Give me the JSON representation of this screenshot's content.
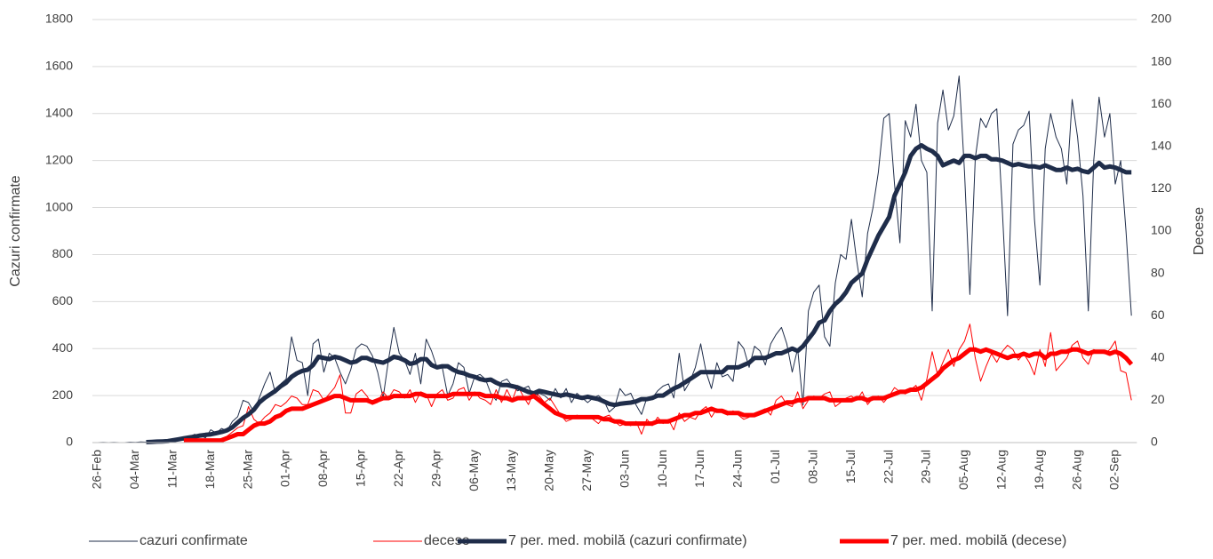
{
  "chart_data": {
    "type": "line",
    "y_label": "Cazuri confirmate",
    "y2_label": "Decese",
    "categories": [
      "26-Feb",
      null,
      null,
      null,
      null,
      null,
      null,
      "04-Mar",
      null,
      null,
      null,
      null,
      null,
      null,
      "11-Mar",
      null,
      null,
      null,
      null,
      null,
      null,
      "18-Mar",
      null,
      null,
      null,
      null,
      null,
      null,
      "25-Mar",
      null,
      null,
      null,
      null,
      null,
      null,
      "01-Apr",
      null,
      null,
      null,
      null,
      null,
      null,
      "08-Apr",
      null,
      null,
      null,
      null,
      null,
      null,
      "15-Apr",
      null,
      null,
      null,
      null,
      null,
      null,
      "22-Apr",
      null,
      null,
      null,
      null,
      null,
      null,
      "29-Apr",
      null,
      null,
      null,
      null,
      null,
      null,
      "06-May",
      null,
      null,
      null,
      null,
      null,
      null,
      "13-May",
      null,
      null,
      null,
      null,
      null,
      null,
      "20-May",
      null,
      null,
      null,
      null,
      null,
      null,
      "27-May",
      null,
      null,
      null,
      null,
      null,
      null,
      "03-Jun",
      null,
      null,
      null,
      null,
      null,
      null,
      "10-Jun",
      null,
      null,
      null,
      null,
      null,
      null,
      "17-Jun",
      null,
      null,
      null,
      null,
      null,
      null,
      "24-Jun",
      null,
      null,
      null,
      null,
      null,
      null,
      "01-Jul",
      null,
      null,
      null,
      null,
      null,
      null,
      "08-Jul",
      null,
      null,
      null,
      null,
      null,
      null,
      "15-Jul",
      null,
      null,
      null,
      null,
      null,
      null,
      "22-Jul",
      null,
      null,
      null,
      null,
      null,
      null,
      "29-Jul",
      null,
      null,
      null,
      null,
      null,
      null,
      "05-Aug",
      null,
      null,
      null,
      null,
      null,
      null,
      "12-Aug",
      null,
      null,
      null,
      null,
      null,
      null,
      "19-Aug",
      null,
      null,
      null,
      null,
      null,
      null,
      "26-Aug",
      null,
      null,
      null,
      null,
      null,
      null,
      "02-Sep",
      null,
      null,
      null
    ],
    "series": [
      {
        "name": "cazuri confirmate",
        "color": "#1f2d4a",
        "values": [
          0,
          1,
          0,
          1,
          0,
          0,
          2,
          1,
          3,
          2,
          3,
          5,
          6,
          8,
          15,
          20,
          10,
          25,
          35,
          30,
          20,
          55,
          40,
          60,
          50,
          90,
          110,
          180,
          170,
          130,
          190,
          250,
          300,
          210,
          250,
          270,
          450,
          350,
          340,
          200,
          420,
          440,
          300,
          380,
          360,
          300,
          250,
          310,
          400,
          420,
          410,
          370,
          300,
          190,
          350,
          490,
          380,
          350,
          290,
          380,
          250,
          440,
          390,
          320,
          320,
          200,
          250,
          340,
          320,
          210,
          280,
          290,
          270,
          210,
          180,
          260,
          270,
          240,
          220,
          230,
          240,
          190,
          210,
          200,
          180,
          230,
          190,
          230,
          170,
          210,
          190,
          170,
          190,
          200,
          180,
          130,
          150,
          230,
          200,
          210,
          160,
          120,
          190,
          190,
          220,
          240,
          250,
          190,
          380,
          220,
          260,
          320,
          420,
          300,
          230,
          340,
          280,
          290,
          260,
          430,
          400,
          320,
          410,
          390,
          330,
          420,
          460,
          490,
          420,
          300,
          400,
          160,
          560,
          640,
          670,
          450,
          410,
          680,
          800,
          780,
          950,
          770,
          620,
          890,
          1000,
          1150,
          1380,
          1400,
          1100,
          850,
          1370,
          1300,
          1440,
          1200,
          1150,
          560,
          1360,
          1500,
          1330,
          1390,
          1560,
          1150,
          630,
          1210,
          1380,
          1340,
          1400,
          1420,
          1000,
          540,
          1270,
          1330,
          1350,
          1410,
          950,
          670,
          1250,
          1400,
          1300,
          1250,
          1100,
          1460,
          1300,
          1050,
          560,
          1200,
          1470,
          1300,
          1400,
          1100,
          1200,
          900,
          540
        ]
      },
      {
        "name": "decese",
        "color": "#ff0000",
        "axis": "y2",
        "values": [
          null,
          null,
          null,
          null,
          null,
          null,
          null,
          null,
          null,
          null,
          null,
          null,
          null,
          null,
          null,
          null,
          0,
          1,
          1,
          0,
          1,
          0,
          1,
          2,
          3,
          5,
          7,
          8,
          17,
          11,
          9,
          12,
          14,
          18,
          17,
          19,
          22,
          21,
          18,
          18,
          25,
          24,
          20,
          23,
          26,
          32,
          14,
          14,
          23,
          25,
          22,
          18,
          19,
          24,
          21,
          25,
          24,
          21,
          25,
          19,
          24,
          23,
          17,
          23,
          25,
          20,
          21,
          25,
          26,
          20,
          24,
          21,
          20,
          18,
          25,
          19,
          25,
          20,
          27,
          22,
          18,
          24,
          22,
          19,
          21,
          17,
          13,
          10,
          11,
          13,
          12,
          12,
          11,
          9,
          12,
          13,
          10,
          8,
          9,
          8,
          10,
          4,
          11,
          8,
          12,
          9,
          11,
          6,
          14,
          10,
          12,
          11,
          15,
          17,
          12,
          16,
          14,
          13,
          15,
          13,
          11,
          12,
          14,
          15,
          16,
          13,
          20,
          22,
          18,
          17,
          24,
          16,
          20,
          22,
          21,
          23,
          24,
          17,
          19,
          21,
          22,
          20,
          24,
          18,
          21,
          22,
          19,
          22,
          26,
          24,
          23,
          25,
          27,
          20,
          30,
          43,
          32,
          38,
          44,
          36,
          44,
          48,
          56,
          40,
          29,
          36,
          42,
          38,
          43,
          46,
          44,
          39,
          42,
          38,
          32,
          44,
          36,
          52,
          34,
          37,
          40,
          46,
          48,
          40,
          37,
          44,
          43,
          42,
          44,
          48,
          34,
          33,
          20
        ]
      },
      {
        "name": "7 per. med. mobilă (cazuri confirmate)",
        "color": "#1f2d4a",
        "values": [
          null,
          null,
          null,
          null,
          null,
          null,
          null,
          null,
          null,
          2,
          3,
          4,
          5,
          6,
          10,
          14,
          18,
          22,
          25,
          30,
          33,
          35,
          40,
          45,
          52,
          65,
          85,
          105,
          120,
          140,
          170,
          190,
          205,
          220,
          240,
          255,
          280,
          295,
          305,
          310,
          330,
          365,
          360,
          355,
          365,
          360,
          350,
          340,
          345,
          360,
          360,
          350,
          345,
          340,
          350,
          365,
          360,
          350,
          335,
          340,
          355,
          355,
          330,
          320,
          325,
          325,
          310,
          300,
          295,
          285,
          280,
          270,
          265,
          268,
          255,
          245,
          245,
          240,
          235,
          225,
          215,
          210,
          220,
          215,
          210,
          205,
          200,
          205,
          200,
          195,
          190,
          195,
          190,
          185,
          175,
          165,
          160,
          165,
          168,
          170,
          175,
          185,
          185,
          190,
          200,
          200,
          215,
          230,
          240,
          255,
          270,
          285,
          300,
          300,
          300,
          300,
          300,
          320,
          320,
          320,
          330,
          340,
          360,
          360,
          360,
          370,
          380,
          380,
          390,
          400,
          390,
          410,
          440,
          470,
          510,
          520,
          560,
          590,
          610,
          640,
          680,
          700,
          720,
          780,
          830,
          880,
          920,
          960,
          1050,
          1100,
          1150,
          1220,
          1250,
          1265,
          1250,
          1240,
          1220,
          1180,
          1190,
          1200,
          1190,
          1220,
          1220,
          1210,
          1220,
          1220,
          1205,
          1205,
          1200,
          1190,
          1180,
          1185,
          1180,
          1175,
          1175,
          1170,
          1180,
          1170,
          1160,
          1160,
          1170,
          1160,
          1165,
          1155,
          1150,
          1170,
          1190,
          1170,
          1175,
          1170,
          1160,
          1150,
          1150
        ]
      },
      {
        "name": "7 per. med. mobilă (decese)",
        "color": "#ff0000",
        "axis": "y2",
        "values": [
          null,
          null,
          null,
          null,
          null,
          null,
          null,
          null,
          null,
          null,
          null,
          null,
          null,
          null,
          null,
          null,
          1,
          1,
          1,
          1,
          1,
          1,
          1,
          1,
          2,
          3,
          4,
          4,
          6,
          8,
          9,
          9,
          10,
          12,
          13,
          15,
          16,
          16,
          16,
          17,
          18,
          19,
          20,
          21,
          22,
          22,
          21,
          20,
          20,
          20,
          20,
          19,
          20,
          21,
          21,
          22,
          22,
          22,
          22,
          23,
          23,
          22,
          22,
          22,
          22,
          22,
          23,
          23,
          23,
          23,
          23,
          23,
          22,
          22,
          22,
          21,
          21,
          20,
          21,
          21,
          21,
          22,
          20,
          18,
          16,
          14,
          13,
          12,
          12,
          12,
          12,
          12,
          12,
          12,
          11,
          11,
          10,
          10,
          9,
          9,
          9,
          9,
          9,
          9,
          10,
          10,
          10,
          11,
          12,
          13,
          13,
          14,
          14,
          15,
          16,
          15,
          15,
          14,
          14,
          14,
          13,
          13,
          13,
          14,
          15,
          16,
          17,
          18,
          19,
          19,
          20,
          20,
          21,
          21,
          21,
          21,
          20,
          20,
          20,
          20,
          20,
          21,
          21,
          20,
          21,
          21,
          21,
          22,
          23,
          24,
          24,
          25,
          25,
          26,
          28,
          30,
          32,
          35,
          37,
          39,
          40,
          42,
          44,
          44,
          43,
          44,
          43,
          42,
          41,
          40,
          41,
          41,
          42,
          41,
          42,
          42,
          40,
          42,
          42,
          43,
          43,
          44,
          44,
          43,
          42,
          43,
          43,
          43,
          42,
          43,
          42,
          40,
          37
        ]
      }
    ],
    "ylim": [
      0,
      1800
    ],
    "yticks": [
      0,
      200,
      400,
      600,
      800,
      1000,
      1200,
      1400,
      1600,
      1800
    ],
    "y2lim": [
      0,
      200
    ],
    "y2ticks": [
      0,
      20,
      40,
      60,
      80,
      100,
      120,
      140,
      160,
      180,
      200
    ],
    "grid": true,
    "legend": "bottom"
  }
}
